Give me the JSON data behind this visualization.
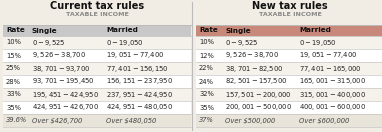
{
  "left_title": "Current tax rules",
  "right_title": "New tax rules",
  "subtitle": "TAXABLE INCOME",
  "left_header_bg": "#c8c8c8",
  "right_header_bg": "#c8897a",
  "left_headers": [
    "Rate",
    "Single",
    "Married"
  ],
  "right_headers": [
    "Rate",
    "Single",
    "Married"
  ],
  "left_rows": [
    [
      "10%",
      "$0 - $9,525",
      "$0 - $19,050"
    ],
    [
      "15%",
      "$9,526 - $38,700",
      "$19,051 - $77,400"
    ],
    [
      "25%",
      "$38,701 - $93,700",
      "$77,401 - $156,150"
    ],
    [
      "28%",
      "$93,701 - $195,450",
      "$156,151 - $237,950"
    ],
    [
      "33%",
      "$195,451 - $424,950",
      "$237,951 - $424,950"
    ],
    [
      "35%",
      "$424,951 - $426,700",
      "$424,951 - $480,050"
    ],
    [
      "39.6%",
      "Over $426,700",
      "Over $480,050"
    ]
  ],
  "right_rows": [
    [
      "10%",
      "$0 - $9,525",
      "$0 - $19,050"
    ],
    [
      "12%",
      "$9,526 - $38,700",
      "$19,051 - $77,400"
    ],
    [
      "22%",
      "$38,701 - $82,500",
      "$77,401 - $165,000"
    ],
    [
      "24%",
      "$82,501 - $157,500",
      "$165,001 - $315,000"
    ],
    [
      "32%",
      "$157,501 - $200,000",
      "$315,001 - $400,000"
    ],
    [
      "35%",
      "$200,001 - $500,000",
      "$400,001 - $600,000"
    ],
    [
      "37%",
      "Over $500,000",
      "Over $600,000"
    ]
  ],
  "bg_color": "#f2ede4",
  "row_colors_left": [
    "#f5f2ec",
    "#ffffff",
    "#f5f2ec",
    "#ffffff",
    "#f5f2ec",
    "#ffffff",
    "#e8e4da"
  ],
  "row_colors_right": [
    "#f5f2ec",
    "#ffffff",
    "#f5f2ec",
    "#ffffff",
    "#f5f2ec",
    "#ffffff",
    "#e8e4da"
  ],
  "divider_color": "#bbbbbb",
  "header_text_color": "#111111",
  "body_text_color": "#222222",
  "last_row_text_color": "#444444",
  "title_color": "#111111",
  "subtitle_color": "#888888",
  "mid_divider_color": "#bbbbbb"
}
